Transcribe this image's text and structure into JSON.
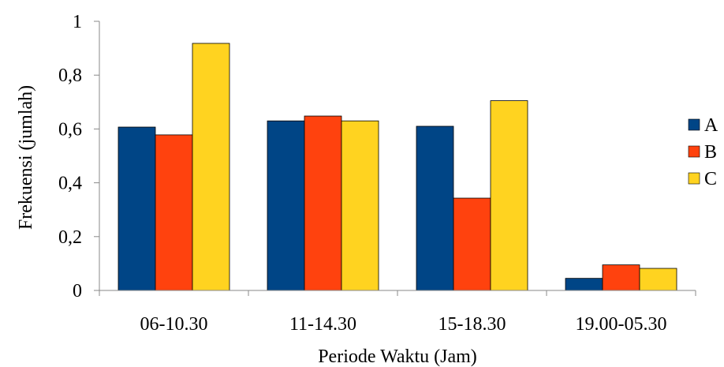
{
  "chart_data": {
    "type": "bar",
    "categories": [
      "06-10.30",
      "11-14.30",
      "15-18.30",
      "19.00-05.30"
    ],
    "series": [
      {
        "name": "A",
        "color": "#004586",
        "values": [
          0.607,
          0.63,
          0.61,
          0.045
        ]
      },
      {
        "name": "B",
        "color": "#FF420E",
        "values": [
          0.578,
          0.648,
          0.343,
          0.095
        ]
      },
      {
        "name": "C",
        "color": "#FFD320",
        "values": [
          0.918,
          0.63,
          0.705,
          0.082
        ]
      }
    ],
    "yticks": [
      "0",
      "0,2",
      "0,4",
      "0,6",
      "0,8",
      "1"
    ],
    "ylim": [
      0,
      1
    ],
    "xlabel": "Periode Waktu (Jam)",
    "ylabel": "Frekuensi (jumlah)",
    "grid": false,
    "legend_position": "right"
  }
}
